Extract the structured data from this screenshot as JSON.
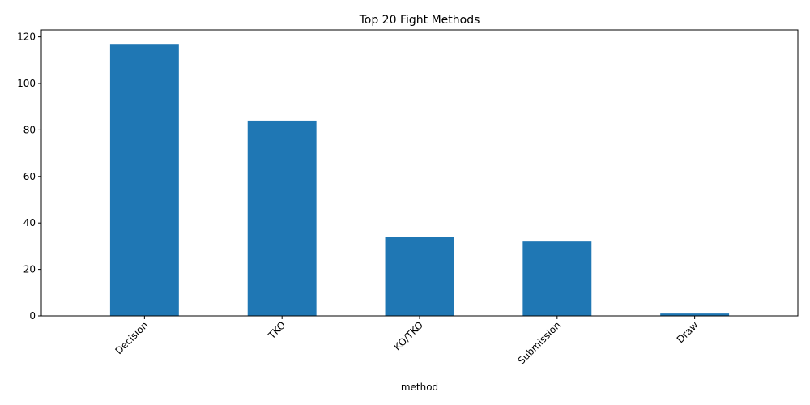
{
  "chart_data": {
    "type": "bar",
    "title": "Top 20 Fight Methods",
    "xlabel": "method",
    "ylabel": "",
    "categories": [
      "Decision",
      "TKO",
      "KO/TKO",
      "Submission",
      "Draw"
    ],
    "values": [
      117,
      84,
      34,
      32,
      1
    ],
    "ylim": [
      0,
      123
    ],
    "yticks": [
      0,
      20,
      40,
      60,
      80,
      100,
      120
    ],
    "bar_color": "#1f77b4",
    "grid": false,
    "legend": "none"
  }
}
